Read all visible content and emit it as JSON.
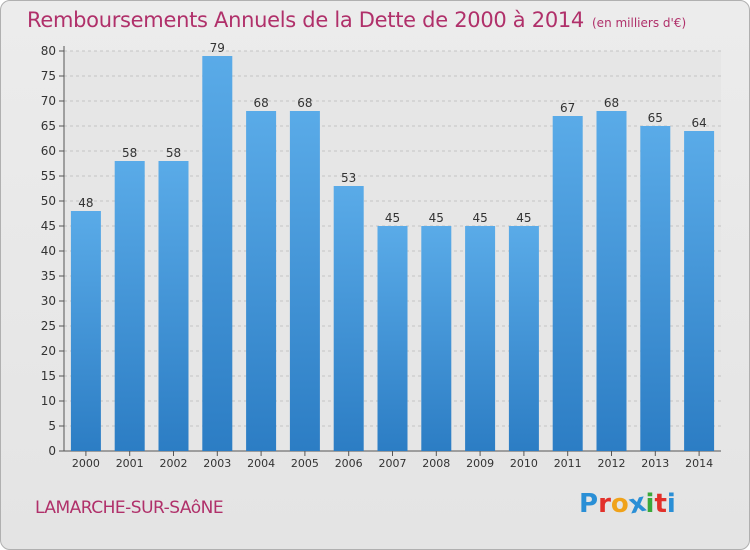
{
  "chart_data": {
    "type": "bar",
    "title": "Remboursements Annuels de la Dette de 2000 à 2014",
    "subtitle": "(en milliers d'€)",
    "categories": [
      "2000",
      "2001",
      "2002",
      "2003",
      "2004",
      "2005",
      "2006",
      "2007",
      "2008",
      "2009",
      "2010",
      "2011",
      "2012",
      "2013",
      "2014"
    ],
    "values": [
      48,
      58,
      58,
      79,
      68,
      68,
      53,
      45,
      45,
      45,
      45,
      67,
      68,
      65,
      64
    ],
    "ylim": [
      0,
      80
    ],
    "yticks": [
      0,
      5,
      10,
      15,
      20,
      25,
      30,
      35,
      40,
      45,
      50,
      55,
      60,
      65,
      70,
      75,
      80
    ],
    "grid": true,
    "bar_color": "#4f9fe0",
    "bar_color_dark": "#2d7fc6"
  },
  "commune": "LAMARCHE-SUR-SAôNE",
  "logo": {
    "letters": [
      "P",
      "r",
      "o",
      "x",
      "i",
      "t",
      "i"
    ],
    "colors": [
      "#2a8fd6",
      "#e2302a",
      "#f0a21a",
      "#2a8fd6",
      "#3aa83a",
      "#e2302a",
      "#2a8fd6"
    ]
  },
  "colors": {
    "accent": "#b0306a"
  }
}
